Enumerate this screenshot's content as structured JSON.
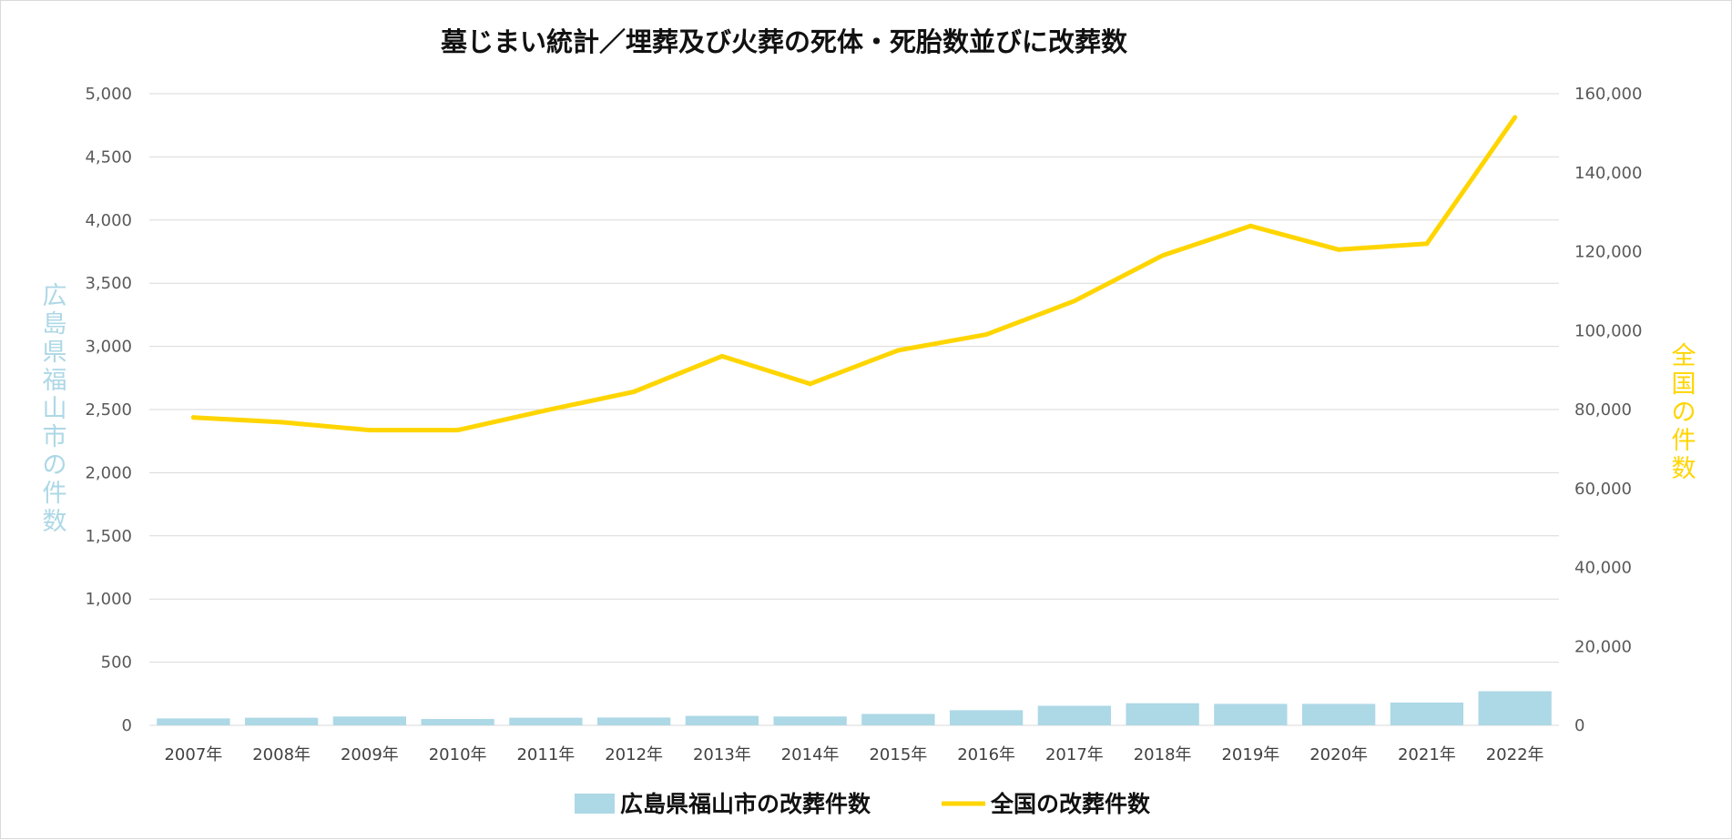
{
  "chart_data": {
    "type": "bar+line",
    "title": "墓じまい統計／埋葬及び火葬の死体・死胎数並びに改葬数",
    "categories": [
      "2007年",
      "2008年",
      "2009年",
      "2010年",
      "2011年",
      "2012年",
      "2013年",
      "2014年",
      "2015年",
      "2016年",
      "2017年",
      "2018年",
      "2019年",
      "2020年",
      "2021年",
      "2022年"
    ],
    "left_axis": {
      "label": "広島県福山市の件数",
      "ylim": [
        0,
        5000
      ],
      "ticks": [
        "0",
        "500",
        "1,000",
        "1,500",
        "2,000",
        "2,500",
        "3,000",
        "3,500",
        "4,000",
        "4,500",
        "5,000"
      ]
    },
    "right_axis": {
      "label": "全国の件数",
      "ylim": [
        0,
        160000
      ],
      "ticks": [
        "0",
        "20,000",
        "40,000",
        "60,000",
        "80,000",
        "100,000",
        "120,000",
        "140,000",
        "160,000"
      ]
    },
    "series": [
      {
        "name": "広島県福山市の改葬件数",
        "type": "bar",
        "axis": "left",
        "color": "#add8e6",
        "values": [
          55,
          60,
          70,
          50,
          60,
          62,
          75,
          70,
          90,
          120,
          155,
          175,
          170,
          170,
          180,
          270
        ]
      },
      {
        "name": "全国の改葬件数",
        "type": "line",
        "axis": "right",
        "color": "#ffd500",
        "values": [
          78000,
          76800,
          74800,
          74800,
          79800,
          84500,
          93500,
          86500,
          95000,
          99000,
          107500,
          119000,
          126500,
          120500,
          122000,
          154000
        ]
      }
    ],
    "grid": true,
    "legend_position": "bottom",
    "colors": {
      "left_axis_label": "#add8e6",
      "right_axis_label": "#ffd500",
      "grid": "#d9d9d9"
    }
  }
}
